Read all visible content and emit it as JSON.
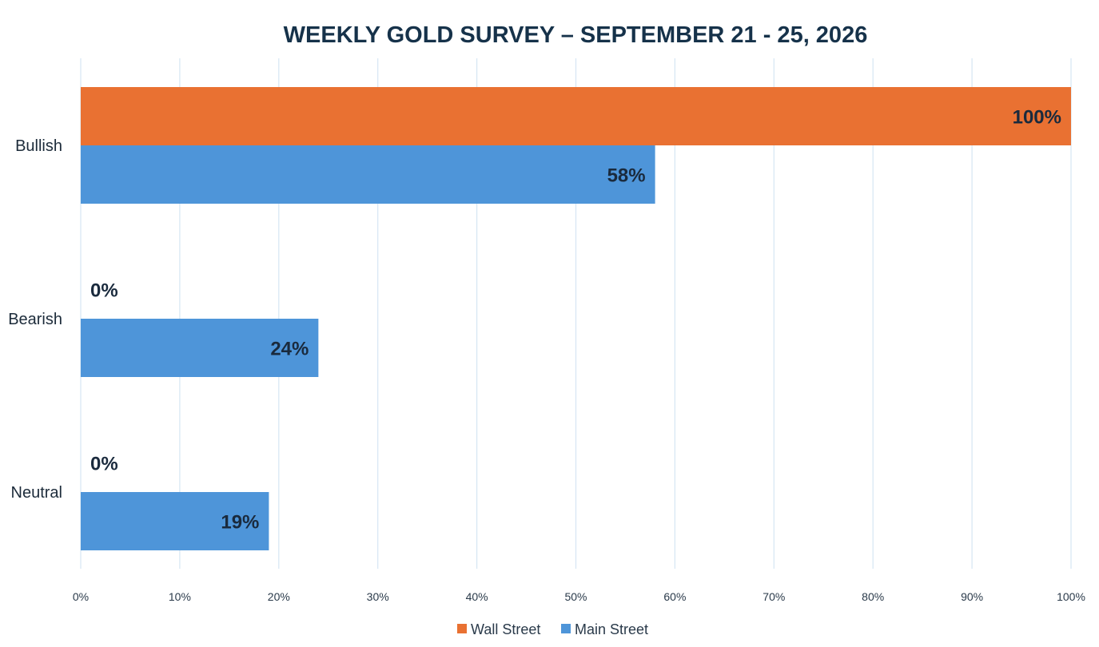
{
  "chart_data": {
    "type": "bar",
    "orientation": "horizontal",
    "title": "WEEKLY GOLD SURVEY – SEPTEMBER 21 - 25, 2026",
    "xlabel": "",
    "ylabel": "",
    "categories": [
      "Bullish",
      "Bearish",
      "Neutral"
    ],
    "series": [
      {
        "name": "Wall Street",
        "values": [
          100,
          0,
          0
        ],
        "color": "#E97132",
        "labels": [
          "100%",
          "0%",
          "0%"
        ]
      },
      {
        "name": "Main Street",
        "values": [
          58,
          24,
          19
        ],
        "color": "#4E95D9",
        "labels": [
          "58%",
          "24%",
          "19%"
        ]
      }
    ],
    "xlim": [
      0,
      100
    ],
    "x_ticks": [
      "0%",
      "10%",
      "20%",
      "30%",
      "40%",
      "50%",
      "60%",
      "70%",
      "80%",
      "90%",
      "100%"
    ],
    "grid": true,
    "legend_position": "bottom"
  }
}
